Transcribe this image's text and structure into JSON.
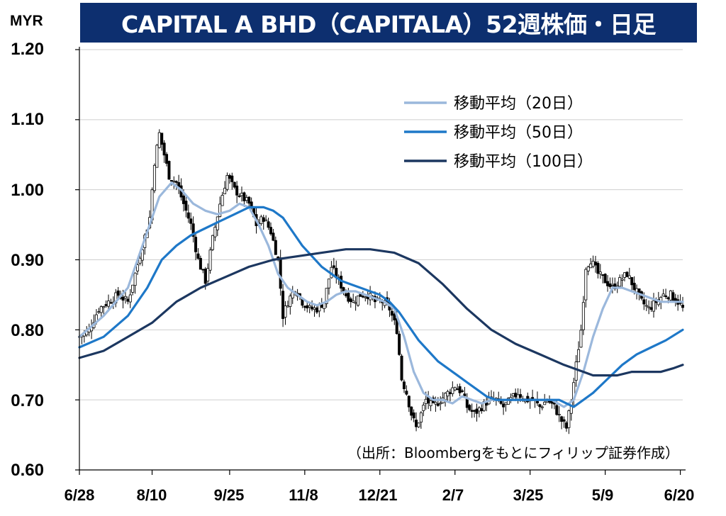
{
  "header": {
    "title": "CAPITAL A BHD（CAPITALA）52週株価・日足",
    "unit": "MYR",
    "source": "（出所：Bloombergをもとにフィリップ証券作成）"
  },
  "colors": {
    "title_bg": "#0d2f6f",
    "ma20": "#9bb8dc",
    "ma50": "#1e78c8",
    "ma100": "#1c3760",
    "candle": "#000000"
  },
  "chart_data": {
    "type": "candlestick",
    "title": "CAPITAL A BHD（CAPITALA）52週株価・日足",
    "ylabel": "MYR",
    "ylim": [
      0.6,
      1.2
    ],
    "yticks": [
      "1.20",
      "1.10",
      "1.00",
      "0.90",
      "0.80",
      "0.70",
      "0.60"
    ],
    "ytick_values": [
      1.2,
      1.1,
      1.0,
      0.9,
      0.8,
      0.7,
      0.6
    ],
    "xticks": [
      "6/28",
      "8/10",
      "9/25",
      "11/8",
      "12/21",
      "2/7",
      "3/25",
      "5/9",
      "6/20"
    ],
    "xtick_index": [
      0,
      30,
      62,
      93,
      124,
      155,
      186,
      217,
      248
    ],
    "grid": true,
    "legend_position": "top-right",
    "close_anchors": [
      [
        0,
        0.79
      ],
      [
        4,
        0.8
      ],
      [
        8,
        0.83
      ],
      [
        12,
        0.84
      ],
      [
        16,
        0.85
      ],
      [
        20,
        0.84
      ],
      [
        23,
        0.88
      ],
      [
        26,
        0.92
      ],
      [
        29,
        0.96
      ],
      [
        31,
        1.04
      ],
      [
        33,
        1.08
      ],
      [
        35,
        1.05
      ],
      [
        37,
        1.02
      ],
      [
        40,
        1.01
      ],
      [
        43,
        0.98
      ],
      [
        46,
        0.95
      ],
      [
        49,
        0.9
      ],
      [
        52,
        0.87
      ],
      [
        55,
        0.93
      ],
      [
        58,
        0.98
      ],
      [
        61,
        1.02
      ],
      [
        64,
        1.0
      ],
      [
        67,
        0.99
      ],
      [
        70,
        0.98
      ],
      [
        73,
        0.95
      ],
      [
        76,
        0.96
      ],
      [
        79,
        0.94
      ],
      [
        82,
        0.9
      ],
      [
        84,
        0.82
      ],
      [
        86,
        0.84
      ],
      [
        89,
        0.86
      ],
      [
        92,
        0.84
      ],
      [
        95,
        0.83
      ],
      [
        98,
        0.83
      ],
      [
        101,
        0.84
      ],
      [
        104,
        0.89
      ],
      [
        107,
        0.87
      ],
      [
        110,
        0.85
      ],
      [
        113,
        0.84
      ],
      [
        116,
        0.85
      ],
      [
        119,
        0.85
      ],
      [
        122,
        0.84
      ],
      [
        125,
        0.84
      ],
      [
        128,
        0.83
      ],
      [
        131,
        0.8
      ],
      [
        133,
        0.73
      ],
      [
        135,
        0.71
      ],
      [
        137,
        0.68
      ],
      [
        139,
        0.66
      ],
      [
        141,
        0.68
      ],
      [
        143,
        0.7
      ],
      [
        146,
        0.69
      ],
      [
        149,
        0.7
      ],
      [
        152,
        0.71
      ],
      [
        155,
        0.72
      ],
      [
        158,
        0.71
      ],
      [
        160,
        0.69
      ],
      [
        163,
        0.68
      ],
      [
        166,
        0.69
      ],
      [
        169,
        0.7
      ],
      [
        172,
        0.7
      ],
      [
        175,
        0.69
      ],
      [
        178,
        0.7
      ],
      [
        181,
        0.71
      ],
      [
        184,
        0.7
      ],
      [
        187,
        0.7
      ],
      [
        190,
        0.69
      ],
      [
        193,
        0.7
      ],
      [
        196,
        0.69
      ],
      [
        199,
        0.67
      ],
      [
        201,
        0.66
      ],
      [
        203,
        0.7
      ],
      [
        205,
        0.75
      ],
      [
        207,
        0.8
      ],
      [
        209,
        0.89
      ],
      [
        211,
        0.9
      ],
      [
        214,
        0.88
      ],
      [
        217,
        0.87
      ],
      [
        220,
        0.86
      ],
      [
        223,
        0.87
      ],
      [
        226,
        0.88
      ],
      [
        229,
        0.86
      ],
      [
        232,
        0.84
      ],
      [
        235,
        0.83
      ],
      [
        238,
        0.84
      ],
      [
        241,
        0.85
      ],
      [
        244,
        0.85
      ],
      [
        247,
        0.84
      ],
      [
        249,
        0.83
      ]
    ],
    "series": [
      {
        "name": "移動平均（20日）",
        "points": [
          [
            0,
            0.79
          ],
          [
            10,
            0.82
          ],
          [
            20,
            0.86
          ],
          [
            28,
            0.94
          ],
          [
            33,
            0.99
          ],
          [
            38,
            1.01
          ],
          [
            42,
            1.0
          ],
          [
            47,
            0.98
          ],
          [
            52,
            0.97
          ],
          [
            57,
            0.965
          ],
          [
            62,
            0.97
          ],
          [
            66,
            0.98
          ],
          [
            70,
            0.975
          ],
          [
            74,
            0.95
          ],
          [
            78,
            0.92
          ],
          [
            82,
            0.88
          ],
          [
            86,
            0.86
          ],
          [
            90,
            0.85
          ],
          [
            94,
            0.84
          ],
          [
            98,
            0.835
          ],
          [
            102,
            0.84
          ],
          [
            106,
            0.85
          ],
          [
            110,
            0.855
          ],
          [
            114,
            0.855
          ],
          [
            118,
            0.85
          ],
          [
            122,
            0.845
          ],
          [
            126,
            0.84
          ],
          [
            130,
            0.83
          ],
          [
            134,
            0.79
          ],
          [
            138,
            0.74
          ],
          [
            142,
            0.71
          ],
          [
            146,
            0.7
          ],
          [
            150,
            0.7
          ],
          [
            154,
            0.695
          ],
          [
            158,
            0.705
          ],
          [
            162,
            0.7
          ],
          [
            166,
            0.695
          ],
          [
            170,
            0.7
          ],
          [
            175,
            0.7
          ],
          [
            180,
            0.7
          ],
          [
            185,
            0.7
          ],
          [
            190,
            0.7
          ],
          [
            195,
            0.7
          ],
          [
            200,
            0.69
          ],
          [
            204,
            0.7
          ],
          [
            208,
            0.74
          ],
          [
            212,
            0.79
          ],
          [
            216,
            0.83
          ],
          [
            220,
            0.86
          ],
          [
            224,
            0.86
          ],
          [
            228,
            0.855
          ],
          [
            232,
            0.85
          ],
          [
            236,
            0.845
          ],
          [
            240,
            0.84
          ],
          [
            244,
            0.84
          ],
          [
            249,
            0.84
          ]
        ]
      },
      {
        "name": "移動平均（50日）",
        "points": [
          [
            0,
            0.775
          ],
          [
            10,
            0.79
          ],
          [
            20,
            0.82
          ],
          [
            28,
            0.86
          ],
          [
            34,
            0.9
          ],
          [
            40,
            0.92
          ],
          [
            46,
            0.935
          ],
          [
            52,
            0.945
          ],
          [
            58,
            0.955
          ],
          [
            64,
            0.965
          ],
          [
            70,
            0.975
          ],
          [
            76,
            0.975
          ],
          [
            80,
            0.97
          ],
          [
            84,
            0.96
          ],
          [
            88,
            0.94
          ],
          [
            92,
            0.92
          ],
          [
            96,
            0.905
          ],
          [
            100,
            0.89
          ],
          [
            104,
            0.88
          ],
          [
            108,
            0.87
          ],
          [
            112,
            0.865
          ],
          [
            116,
            0.86
          ],
          [
            120,
            0.855
          ],
          [
            124,
            0.85
          ],
          [
            128,
            0.84
          ],
          [
            132,
            0.825
          ],
          [
            136,
            0.805
          ],
          [
            140,
            0.785
          ],
          [
            144,
            0.77
          ],
          [
            148,
            0.755
          ],
          [
            152,
            0.745
          ],
          [
            156,
            0.735
          ],
          [
            160,
            0.725
          ],
          [
            164,
            0.715
          ],
          [
            168,
            0.705
          ],
          [
            172,
            0.7
          ],
          [
            176,
            0.7
          ],
          [
            180,
            0.7
          ],
          [
            186,
            0.7
          ],
          [
            192,
            0.7
          ],
          [
            198,
            0.7
          ],
          [
            204,
            0.69
          ],
          [
            208,
            0.7
          ],
          [
            212,
            0.71
          ],
          [
            218,
            0.73
          ],
          [
            224,
            0.75
          ],
          [
            230,
            0.765
          ],
          [
            236,
            0.775
          ],
          [
            242,
            0.785
          ],
          [
            249,
            0.8
          ]
        ]
      },
      {
        "name": "移動平均（100日）",
        "points": [
          [
            0,
            0.76
          ],
          [
            10,
            0.77
          ],
          [
            20,
            0.79
          ],
          [
            30,
            0.81
          ],
          [
            40,
            0.84
          ],
          [
            50,
            0.86
          ],
          [
            60,
            0.875
          ],
          [
            70,
            0.89
          ],
          [
            80,
            0.9
          ],
          [
            90,
            0.905
          ],
          [
            100,
            0.91
          ],
          [
            110,
            0.915
          ],
          [
            120,
            0.915
          ],
          [
            130,
            0.91
          ],
          [
            140,
            0.895
          ],
          [
            150,
            0.865
          ],
          [
            160,
            0.83
          ],
          [
            170,
            0.8
          ],
          [
            180,
            0.78
          ],
          [
            190,
            0.765
          ],
          [
            200,
            0.75
          ],
          [
            208,
            0.74
          ],
          [
            212,
            0.735
          ],
          [
            216,
            0.735
          ],
          [
            222,
            0.735
          ],
          [
            228,
            0.74
          ],
          [
            234,
            0.74
          ],
          [
            240,
            0.74
          ],
          [
            245,
            0.745
          ],
          [
            249,
            0.75
          ]
        ]
      }
    ]
  }
}
